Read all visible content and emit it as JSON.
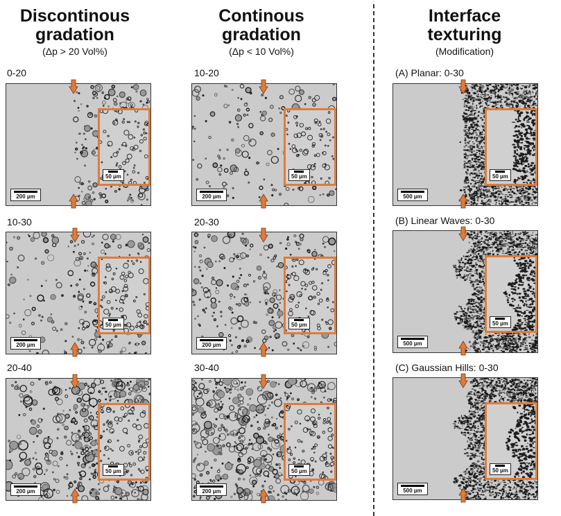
{
  "columns": [
    {
      "title_line1": "Discontinous",
      "title_line2": "gradation",
      "subtitle": "(Δp > 20 Vol%)"
    },
    {
      "title_line1": "Continous",
      "title_line2": "gradation",
      "subtitle": "(Δp < 10 Vol%)"
    },
    {
      "title_line1": "Interface",
      "title_line2": "texturing",
      "subtitle": "(Modification)"
    }
  ],
  "panels": [
    {
      "label": "0-20",
      "scale": "200 µm",
      "inset_scale": "50 µm"
    },
    {
      "label": "10-30",
      "scale": "200 µm",
      "inset_scale": "50 µm"
    },
    {
      "label": "20-40",
      "scale": "200 µm",
      "inset_scale": "50 µm"
    },
    {
      "label": "10-20",
      "scale": "200 µm",
      "inset_scale": "50 µm"
    },
    {
      "label": "20-30",
      "scale": "200 µm",
      "inset_scale": "50 µm"
    },
    {
      "label": "30-40",
      "scale": "200 µm",
      "inset_scale": "50 µm"
    },
    {
      "label": "(A) Planar: 0-30",
      "scale": "500 µm",
      "inset_scale": "50 µm"
    },
    {
      "label": "(B) Linear Waves: 0-30",
      "scale": "500 µm",
      "inset_scale": "50 µm"
    },
    {
      "label": "(C) Gaussian Hills: 0-30",
      "scale": "500 µm",
      "inset_scale": "50 µm"
    }
  ],
  "colors": {
    "accent": "#e07b3a"
  }
}
